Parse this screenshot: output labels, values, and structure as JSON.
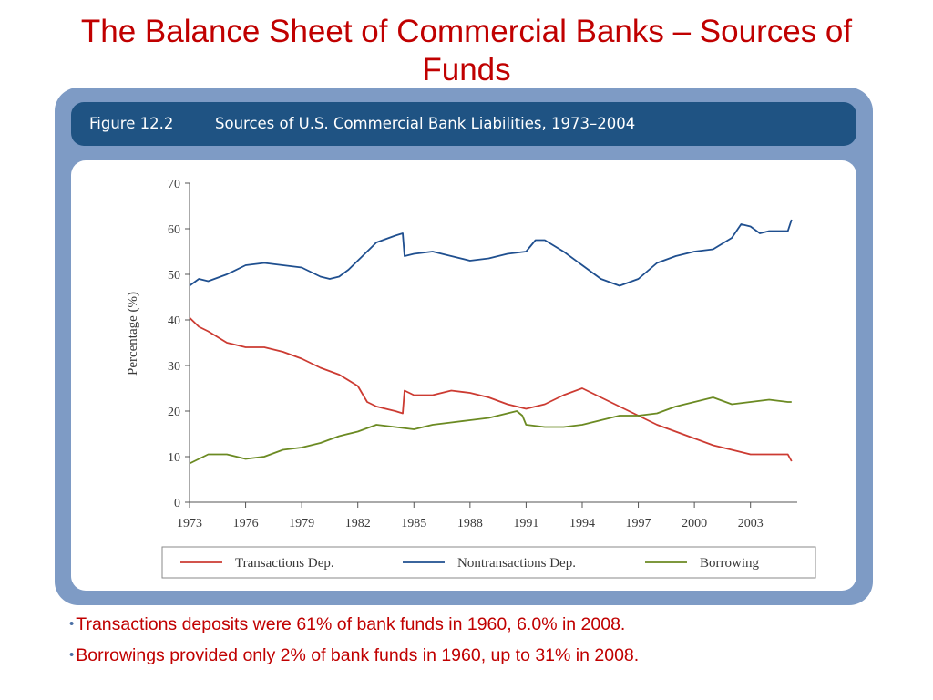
{
  "slide": {
    "title": "The Balance Sheet of Commercial Banks – Sources of Funds",
    "bullets": [
      "Transactions deposits were 61% of bank funds in 1960, 6.0% in 2008.",
      "Borrowings provided only 2% of bank funds in 1960, up to 31% in 2008."
    ]
  },
  "figure": {
    "number": "Figure 12.2",
    "caption": "Sources of U.S. Commercial Bank Liabilities, 1973–2004"
  },
  "colors": {
    "title_text": "#c00000",
    "frame": "#7e9bc5",
    "header": "#1f5383",
    "transactions": "#cc3b32",
    "nontransactions": "#1f4f8f",
    "borrowing": "#6b8a22"
  },
  "chart_data": {
    "type": "line",
    "title": "Sources of U.S. Commercial Bank Liabilities, 1973–2004",
    "xlabel": "",
    "ylabel": "Percentage (%)",
    "xlim": [
      1973,
      2005.5
    ],
    "ylim": [
      0,
      70
    ],
    "x_ticks": [
      1973,
      1976,
      1979,
      1982,
      1985,
      1988,
      1991,
      1994,
      1997,
      2000,
      2003
    ],
    "y_ticks": [
      0,
      10,
      20,
      30,
      40,
      50,
      60,
      70
    ],
    "grid": false,
    "legend_position": "bottom",
    "series": [
      {
        "name": "Transactions Dep.",
        "color": "#cc3b32",
        "points": [
          [
            1973,
            40.5
          ],
          [
            1973.5,
            38.5
          ],
          [
            1974,
            37.5
          ],
          [
            1975,
            35
          ],
          [
            1976,
            34
          ],
          [
            1977,
            34
          ],
          [
            1978,
            33
          ],
          [
            1979,
            31.5
          ],
          [
            1980,
            29.5
          ],
          [
            1981,
            28
          ],
          [
            1982,
            25.5
          ],
          [
            1982.5,
            22
          ],
          [
            1983,
            21
          ],
          [
            1984,
            20
          ],
          [
            1984.4,
            19.5
          ],
          [
            1984.5,
            24.5
          ],
          [
            1985,
            23.5
          ],
          [
            1986,
            23.5
          ],
          [
            1987,
            24.5
          ],
          [
            1988,
            24
          ],
          [
            1989,
            23
          ],
          [
            1990,
            21.5
          ],
          [
            1991,
            20.5
          ],
          [
            1992,
            21.5
          ],
          [
            1993,
            23.5
          ],
          [
            1994,
            25
          ],
          [
            1995,
            23
          ],
          [
            1996,
            21
          ],
          [
            1997,
            19
          ],
          [
            1998,
            17
          ],
          [
            1999,
            15.5
          ],
          [
            2000,
            14
          ],
          [
            2001,
            12.5
          ],
          [
            2002,
            11.5
          ],
          [
            2003,
            10.5
          ],
          [
            2004,
            10.5
          ],
          [
            2005,
            10.5
          ],
          [
            2005.2,
            9
          ]
        ]
      },
      {
        "name": "Nontransactions Dep.",
        "color": "#1f4f8f",
        "points": [
          [
            1973,
            47.5
          ],
          [
            1973.5,
            49
          ],
          [
            1974,
            48.5
          ],
          [
            1975,
            50
          ],
          [
            1976,
            52
          ],
          [
            1977,
            52.5
          ],
          [
            1978,
            52
          ],
          [
            1979,
            51.5
          ],
          [
            1980,
            49.5
          ],
          [
            1980.5,
            49
          ],
          [
            1981,
            49.5
          ],
          [
            1981.5,
            51
          ],
          [
            1982,
            53
          ],
          [
            1983,
            57
          ],
          [
            1984,
            58.5
          ],
          [
            1984.4,
            59
          ],
          [
            1984.5,
            54
          ],
          [
            1985,
            54.5
          ],
          [
            1986,
            55
          ],
          [
            1987,
            54
          ],
          [
            1988,
            53
          ],
          [
            1989,
            53.5
          ],
          [
            1990,
            54.5
          ],
          [
            1991,
            55
          ],
          [
            1991.5,
            57.5
          ],
          [
            1992,
            57.5
          ],
          [
            1993,
            55
          ],
          [
            1994,
            52
          ],
          [
            1995,
            49
          ],
          [
            1996,
            47.5
          ],
          [
            1997,
            49
          ],
          [
            1998,
            52.5
          ],
          [
            1999,
            54
          ],
          [
            2000,
            55
          ],
          [
            2001,
            55.5
          ],
          [
            2002,
            58
          ],
          [
            2002.5,
            61
          ],
          [
            2003,
            60.5
          ],
          [
            2003.5,
            59
          ],
          [
            2004,
            59.5
          ],
          [
            2005,
            59.5
          ],
          [
            2005.2,
            62
          ]
        ]
      },
      {
        "name": "Borrowing",
        "color": "#6b8a22",
        "points": [
          [
            1973,
            8.5
          ],
          [
            1973.5,
            9.5
          ],
          [
            1974,
            10.5
          ],
          [
            1975,
            10.5
          ],
          [
            1976,
            9.5
          ],
          [
            1977,
            10
          ],
          [
            1978,
            11.5
          ],
          [
            1979,
            12
          ],
          [
            1980,
            13
          ],
          [
            1981,
            14.5
          ],
          [
            1982,
            15.5
          ],
          [
            1983,
            17
          ],
          [
            1984,
            16.5
          ],
          [
            1985,
            16
          ],
          [
            1986,
            17
          ],
          [
            1987,
            17.5
          ],
          [
            1988,
            18
          ],
          [
            1989,
            18.5
          ],
          [
            1990,
            19.5
          ],
          [
            1990.5,
            20
          ],
          [
            1990.8,
            19
          ],
          [
            1991,
            17
          ],
          [
            1992,
            16.5
          ],
          [
            1993,
            16.5
          ],
          [
            1994,
            17
          ],
          [
            1995,
            18
          ],
          [
            1996,
            19
          ],
          [
            1997,
            19
          ],
          [
            1998,
            19.5
          ],
          [
            1999,
            21
          ],
          [
            2000,
            22
          ],
          [
            2001,
            23
          ],
          [
            2002,
            21.5
          ],
          [
            2003,
            22
          ],
          [
            2004,
            22.5
          ],
          [
            2005,
            22
          ],
          [
            2005.2,
            22
          ]
        ]
      }
    ]
  }
}
